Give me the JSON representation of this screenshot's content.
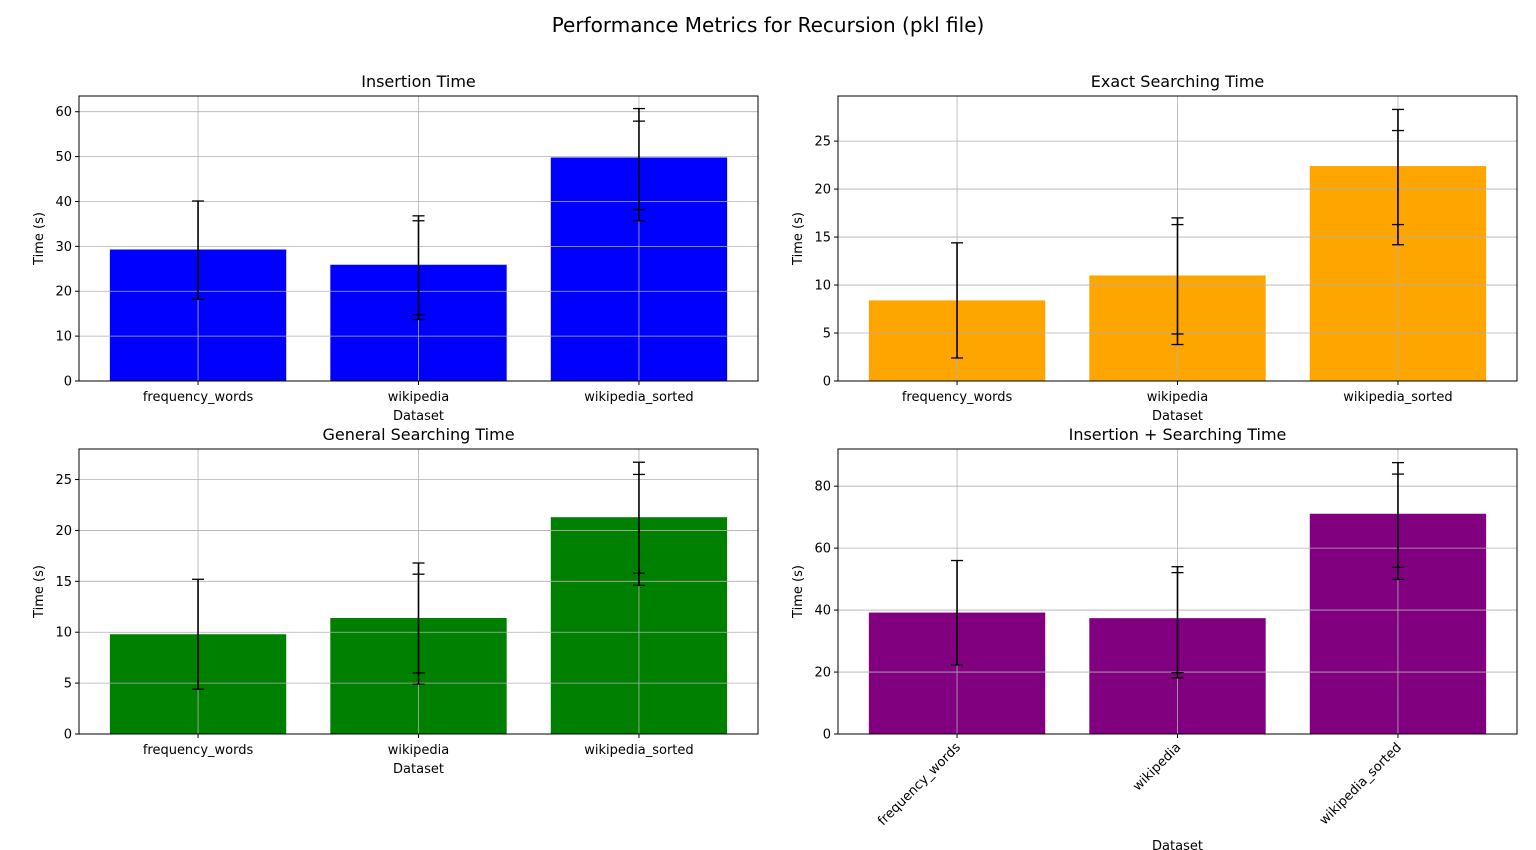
{
  "figure": {
    "suptitle": "Performance Metrics for Recursion (pkl file)"
  },
  "chart_data": [
    {
      "type": "bar",
      "title": "Insertion Time",
      "xlabel": "Dataset",
      "ylabel": "Time (s)",
      "categories": [
        "frequency_words",
        "wikipedia",
        "wikipedia_sorted"
      ],
      "values": [
        29.3,
        25.9,
        49.8
      ],
      "error_bars": [
        [
          18.2,
          40.1
        ],
        [
          13.7,
          36.8
        ],
        [
          35.7,
          60.7
        ]
      ],
      "extra_caps": [
        [],
        [
          14.8,
          35.7
        ],
        [
          38.2,
          57.9
        ]
      ],
      "ylim": [
        0,
        63.5
      ],
      "yticks": [
        0,
        10,
        20,
        30,
        40,
        50,
        60
      ],
      "color": "#0000ff",
      "grid": true,
      "xtick_rotation": 0
    },
    {
      "type": "bar",
      "title": "Exact Searching Time",
      "xlabel": "Dataset",
      "ylabel": "Time (s)",
      "categories": [
        "frequency_words",
        "wikipedia",
        "wikipedia_sorted"
      ],
      "values": [
        8.4,
        11.0,
        22.4
      ],
      "error_bars": [
        [
          2.4,
          14.4
        ],
        [
          3.8,
          17.0
        ],
        [
          14.2,
          28.3
        ]
      ],
      "extra_caps": [
        [],
        [
          4.9,
          16.3
        ],
        [
          16.3,
          26.1
        ]
      ],
      "ylim": [
        0,
        29.7
      ],
      "yticks": [
        0,
        5,
        10,
        15,
        20,
        25
      ],
      "color": "#ffa500",
      "grid": true,
      "xtick_rotation": 0
    },
    {
      "type": "bar",
      "title": "General Searching Time",
      "xlabel": "Dataset",
      "ylabel": "Time (s)",
      "categories": [
        "frequency_words",
        "wikipedia",
        "wikipedia_sorted"
      ],
      "values": [
        9.8,
        11.4,
        21.3
      ],
      "error_bars": [
        [
          4.4,
          15.2
        ],
        [
          4.9,
          16.8
        ],
        [
          14.6,
          26.7
        ]
      ],
      "extra_caps": [
        [],
        [
          6.0,
          15.7
        ],
        [
          15.8,
          25.5
        ]
      ],
      "ylim": [
        0,
        28.0
      ],
      "yticks": [
        0,
        5,
        10,
        15,
        20,
        25
      ],
      "color": "#008000",
      "grid": true,
      "xtick_rotation": 0
    },
    {
      "type": "bar",
      "title": "Insertion + Searching Time",
      "xlabel": "Dataset",
      "ylabel": "Time (s)",
      "categories": [
        "frequency_words",
        "wikipedia",
        "wikipedia_sorted"
      ],
      "values": [
        39.2,
        37.4,
        71.1
      ],
      "error_bars": [
        [
          22.3,
          56.0
        ],
        [
          18.1,
          54.0
        ],
        [
          49.9,
          87.6
        ]
      ],
      "extra_caps": [
        [],
        [
          19.8,
          52.1
        ],
        [
          53.8,
          83.9
        ]
      ],
      "ylim": [
        0,
        92.0
      ],
      "yticks": [
        0,
        20,
        40,
        60,
        80
      ],
      "color": "#800080",
      "grid": true,
      "xtick_rotation": -45
    }
  ]
}
